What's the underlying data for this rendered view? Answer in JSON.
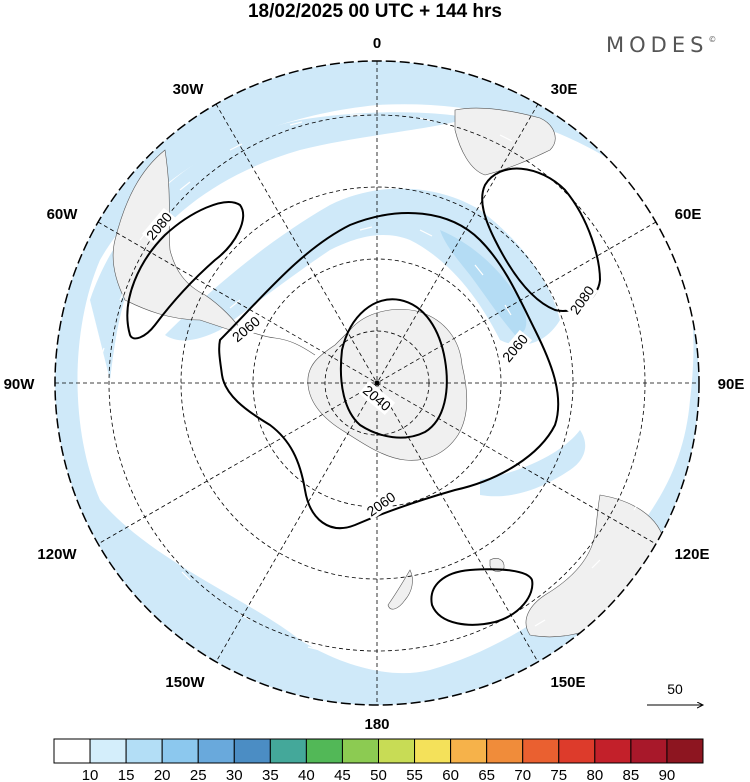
{
  "header": {
    "title": "18/02/2025  00 UTC  + 144 hrs",
    "brand": "MODES",
    "brand_mark": "©"
  },
  "map": {
    "projection": "south-polar-stereographic",
    "longitude_labels": {
      "0": "0",
      "30W": "30W",
      "30E": "30E",
      "60W": "60W",
      "60E": "60E",
      "90W": "90W",
      "90E": "90E",
      "120W": "120W",
      "120E": "120E",
      "150W": "150W",
      "150E": "150E",
      "180": "180"
    },
    "contour_labels": {
      "c2080_west": "2080",
      "c2080_east": "2080",
      "c2060_west": "2060",
      "c2060_east": "2060",
      "c2060_south": "2060",
      "c2040": "2040"
    },
    "wind_reference": {
      "value": "50"
    },
    "colors": {
      "shade_light": "#cfe9f9",
      "shade_medium": "#b4dcf4",
      "land": "#f0f0f0",
      "contour": "#000000",
      "frame": "#000000"
    }
  },
  "colorbar": {
    "ticks": [
      "10",
      "15",
      "20",
      "25",
      "30",
      "35",
      "40",
      "45",
      "50",
      "55",
      "60",
      "65",
      "70",
      "75",
      "80",
      "85",
      "90"
    ],
    "colors": [
      "#ffffff",
      "#d4eefb",
      "#b3def6",
      "#8cc8ee",
      "#69a9dc",
      "#4b8dc4",
      "#44a89a",
      "#52b857",
      "#8ccb52",
      "#c8dc55",
      "#f4e15a",
      "#f6b24a",
      "#f08c3a",
      "#ea6030",
      "#dd3b2b",
      "#c3202a",
      "#a8182a",
      "#8d1520"
    ]
  }
}
